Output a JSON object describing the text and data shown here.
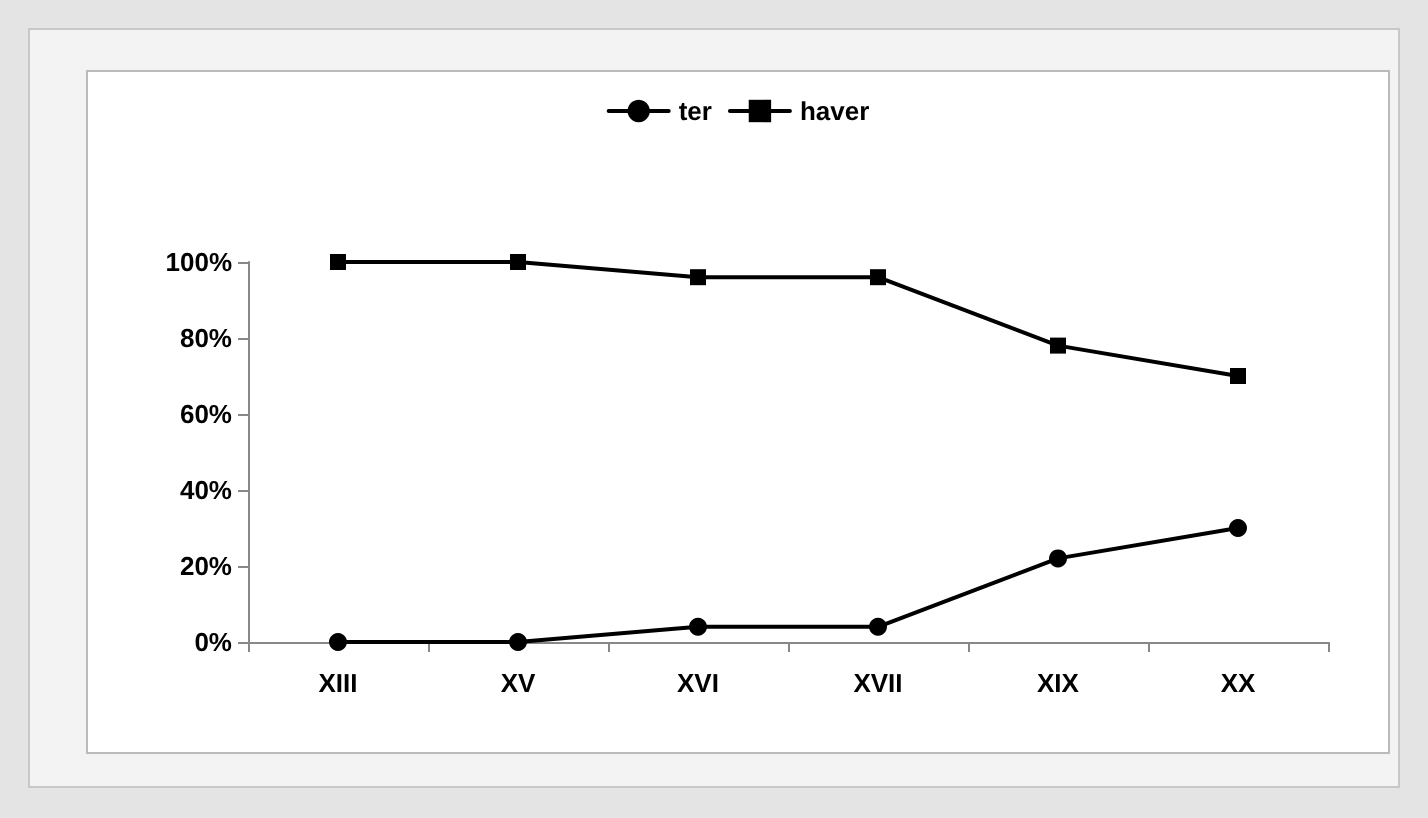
{
  "chart_data": {
    "type": "line",
    "categories": [
      "XIII",
      "XV",
      "XVI",
      "XVII",
      "XIX",
      "XX"
    ],
    "series": [
      {
        "name": "ter",
        "color": "#000000",
        "marker": "circle",
        "values": [
          0,
          0,
          4,
          4,
          22,
          30
        ]
      },
      {
        "name": "haver",
        "color": "#000000",
        "marker": "square",
        "values": [
          100,
          100,
          96,
          96,
          78,
          70
        ]
      }
    ],
    "ylim": [
      0,
      100
    ],
    "yticks": [
      {
        "value": 0,
        "label": "0%"
      },
      {
        "value": 20,
        "label": "20%"
      },
      {
        "value": 40,
        "label": "40%"
      },
      {
        "value": 60,
        "label": "60%"
      },
      {
        "value": 80,
        "label": "80%"
      },
      {
        "value": 100,
        "label": "100%"
      }
    ],
    "grid": false,
    "legend": "top",
    "line_style": "solid"
  }
}
